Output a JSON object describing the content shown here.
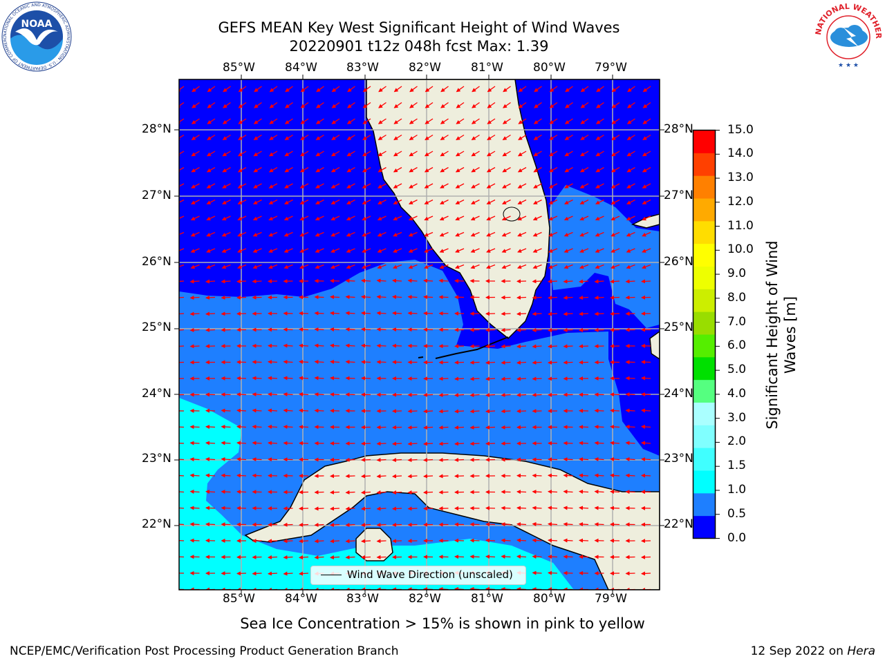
{
  "title": {
    "line1": "GEFS MEAN Key West Significant Height of Wind Waves",
    "line2": "20220901 t12z 048h fcst   Max: 1.39"
  },
  "map": {
    "lon_labels": [
      "85°W",
      "84°W",
      "83°W",
      "82°W",
      "81°W",
      "80°W",
      "79°W"
    ],
    "lat_labels": [
      "28°N",
      "27°N",
      "26°N",
      "25°N",
      "24°N",
      "23°N",
      "22°N"
    ],
    "land_color": "#eeeedd",
    "grid_color": "#b0b0b0",
    "arrow_color": "#ff0000",
    "legend_label": "Wind Wave Direction (unscaled)"
  },
  "colorbar": {
    "label": "Significant Height of Wind Waves [m]",
    "ticks": [
      "0.0",
      "0.5",
      "1.0",
      "1.5",
      "2.0",
      "3.0",
      "4.0",
      "5.0",
      "6.0",
      "7.0",
      "8.0",
      "9.0",
      "10.0",
      "11.0",
      "12.0",
      "13.0",
      "14.0",
      "15.0"
    ],
    "colors": [
      "#0000ff",
      "#1e7fff",
      "#00ffff",
      "#40ffff",
      "#80ffff",
      "#aaffff",
      "#55ff80",
      "#00e000",
      "#55ee00",
      "#99dd00",
      "#ccee00",
      "#eeff00",
      "#ffff00",
      "#ffdd00",
      "#ffaa00",
      "#ff8000",
      "#ff4000",
      "#ff0000"
    ]
  },
  "note": "Sea Ice Concentration > 15% is shown in pink to yellow",
  "footer": {
    "left": "NCEP/EMC/Verification Post Processing Product Generation Branch",
    "right_prefix": "12 Sep 2022 on ",
    "right_machine": "Hera"
  },
  "logos": {
    "noaa_text": "NOAA",
    "noaa_ring": "NATIONAL OCEANIC AND ATMOSPHERIC ADMINISTRATION · U.S. DEPARTMENT OF COMMERCE",
    "nws_ring": "NATIONAL WEATHER SERVICE"
  }
}
